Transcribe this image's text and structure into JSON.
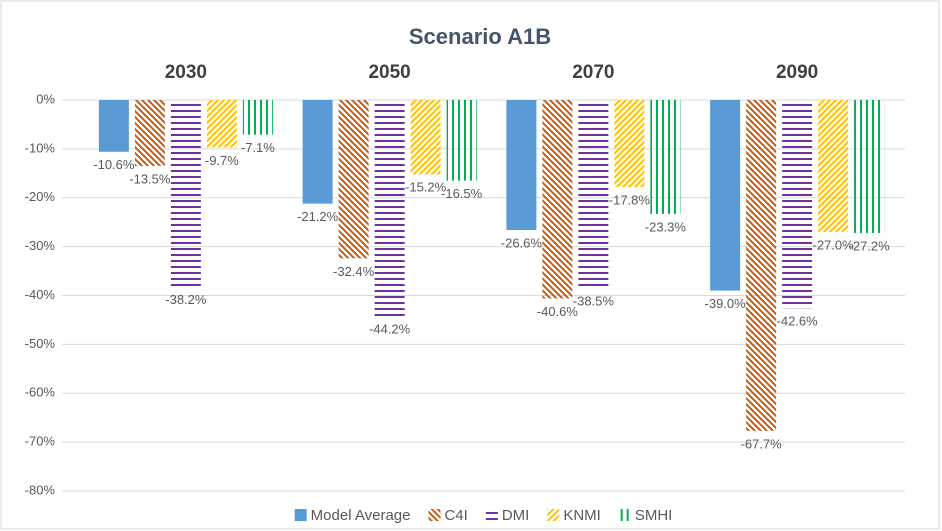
{
  "chart_data": {
    "type": "bar",
    "title": "Scenario A1B",
    "categories": [
      "2030",
      "2050",
      "2070",
      "2090"
    ],
    "category_position": "top",
    "series": [
      {
        "name": "Model Average",
        "color": "#5b9bd5",
        "pattern": "solid",
        "values": [
          -10.6,
          -21.2,
          -26.6,
          -39.0
        ],
        "value_labels": [
          "-10.6%",
          "-21.2%",
          "-26.6%",
          "-39.0%"
        ]
      },
      {
        "name": "C4I",
        "color": "#c55a11",
        "pattern": "diagonal-down",
        "values": [
          -13.5,
          -32.4,
          -40.6,
          -67.7
        ],
        "value_labels": [
          "-13.5%",
          "-32.4%",
          "-40.6%",
          "-67.7%"
        ]
      },
      {
        "name": "DMI",
        "color": "#7030a0",
        "pattern": "horizontal",
        "values": [
          -38.2,
          -44.2,
          -38.5,
          -42.6
        ],
        "value_labels": [
          "-38.2%",
          "-44.2%",
          "-38.5%",
          "-42.6%"
        ]
      },
      {
        "name": "KNMI",
        "color": "#ffc000",
        "pattern": "diagonal-up",
        "values": [
          -9.7,
          -15.2,
          -17.8,
          -27.0
        ],
        "value_labels": [
          "-9.7%",
          "-15.2%",
          "-17.8%",
          "-27.0%"
        ]
      },
      {
        "name": "SMHI",
        "color": "#00b050",
        "pattern": "vertical",
        "values": [
          -7.1,
          -16.5,
          -23.3,
          -27.2
        ],
        "value_labels": [
          "-7.1%",
          "-16.5%",
          "-23.3%",
          "-27.2%"
        ]
      }
    ],
    "ylim": [
      -80,
      0
    ],
    "yticks": [
      {
        "value": 0,
        "label": "0%"
      },
      {
        "value": -10,
        "label": "-10%"
      },
      {
        "value": -20,
        "label": "-20%"
      },
      {
        "value": -30,
        "label": "-30%"
      },
      {
        "value": -40,
        "label": "-40%"
      },
      {
        "value": -50,
        "label": "-50%"
      },
      {
        "value": -60,
        "label": "-60%"
      },
      {
        "value": -70,
        "label": "-70%"
      },
      {
        "value": -80,
        "label": "-80%"
      }
    ],
    "grid": true,
    "legend": "bottom"
  }
}
